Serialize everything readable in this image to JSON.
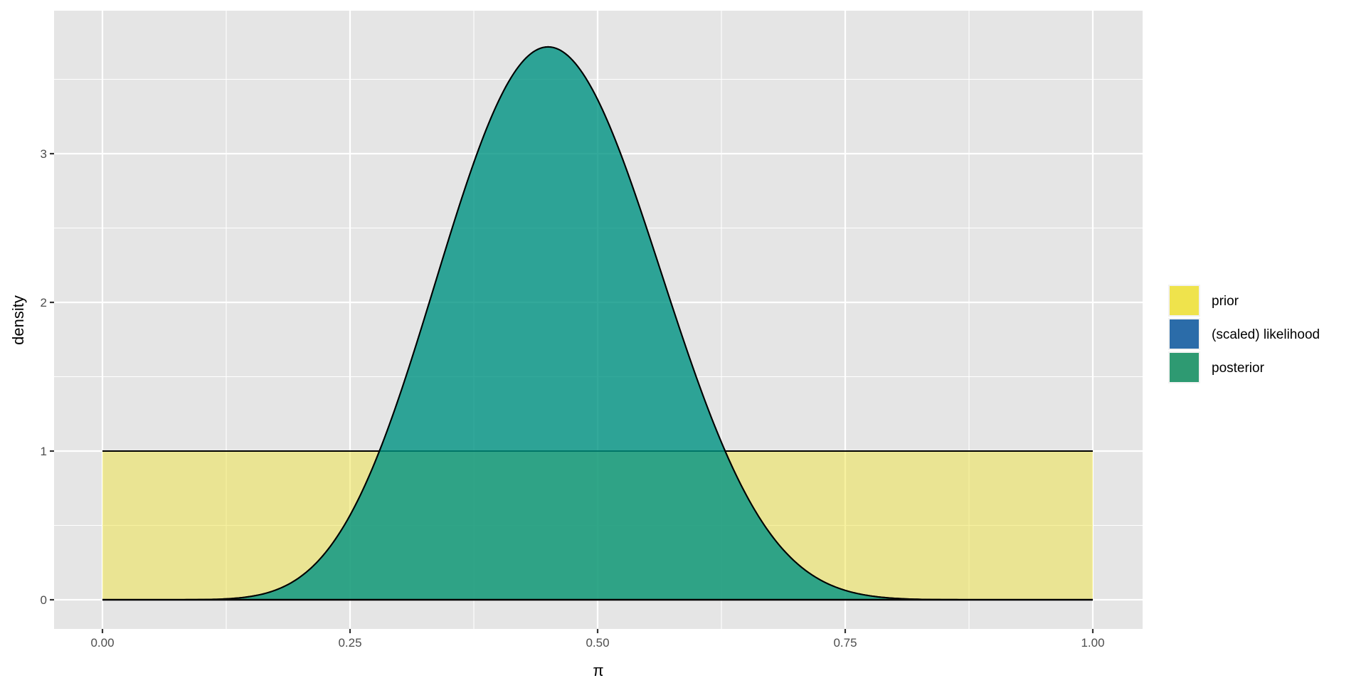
{
  "chart_data": {
    "type": "area",
    "xlabel": "π",
    "ylabel": "density",
    "xlim": [
      -0.05,
      1.05
    ],
    "ylim": [
      -0.185,
      3.9
    ],
    "x_ticks": [
      "0.00",
      "0.25",
      "0.50",
      "0.75",
      "1.00"
    ],
    "x_tick_values": [
      0,
      0.25,
      0.5,
      0.75,
      1
    ],
    "y_ticks": [
      "0",
      "1",
      "2",
      "3"
    ],
    "y_tick_values": [
      0,
      1,
      2,
      3
    ],
    "grid": true,
    "legend_placement": "right",
    "series": [
      {
        "name": "prior",
        "distribution": "Beta(1, 1)",
        "alpha": 1,
        "beta": 1,
        "color": "#F0E442"
      },
      {
        "name": "(scaled) likelihood",
        "distribution": "Beta(10, 12)",
        "alpha": 10,
        "beta": 12,
        "color": "#0072B2"
      },
      {
        "name": "posterior",
        "distribution": "Beta(10, 12)",
        "alpha": 10,
        "beta": 12,
        "color": "#009E73"
      }
    ],
    "peak": {
      "x": 0.45,
      "y": 3.72
    }
  },
  "colors": {
    "panel": "#E5E5E5",
    "grid": "#FFFFFF",
    "legend_prior": "#EFE34C",
    "legend_likelihood": "#2B6CA9",
    "legend_posterior": "#2E9A72"
  }
}
